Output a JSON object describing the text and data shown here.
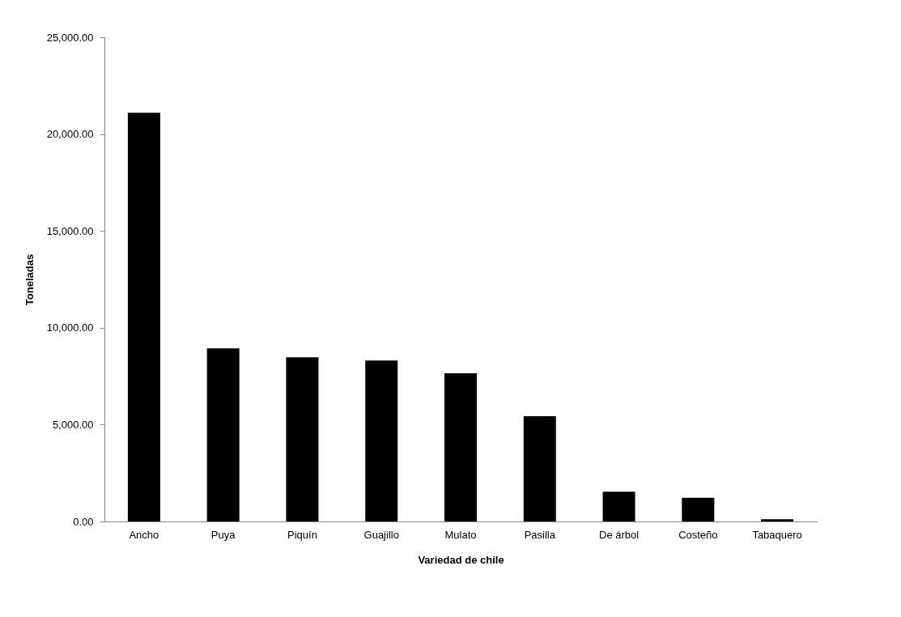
{
  "chart_data": {
    "type": "bar",
    "xlabel": "Variedad de chile",
    "ylabel": "Toneladas",
    "categories": [
      "Ancho",
      "Puya",
      "Piquín",
      "Guajillo",
      "Mulato",
      "Pasilla",
      "De árbol",
      "Costeño",
      "Tabaquero"
    ],
    "values": [
      21100,
      8940,
      8480,
      8310,
      7650,
      5430,
      1540,
      1220,
      120
    ],
    "color": "#000000",
    "ylim": [
      0,
      25000
    ],
    "yticks": [
      {
        "value": 0,
        "label": "0.00"
      },
      {
        "value": 5000,
        "label": "5,000.00"
      },
      {
        "value": 10000,
        "label": "10,000.00"
      },
      {
        "value": 15000,
        "label": "15,000.00"
      },
      {
        "value": 20000,
        "label": "20,000.00"
      },
      {
        "value": 25000,
        "label": "25,000.00"
      }
    ],
    "grid": false
  }
}
